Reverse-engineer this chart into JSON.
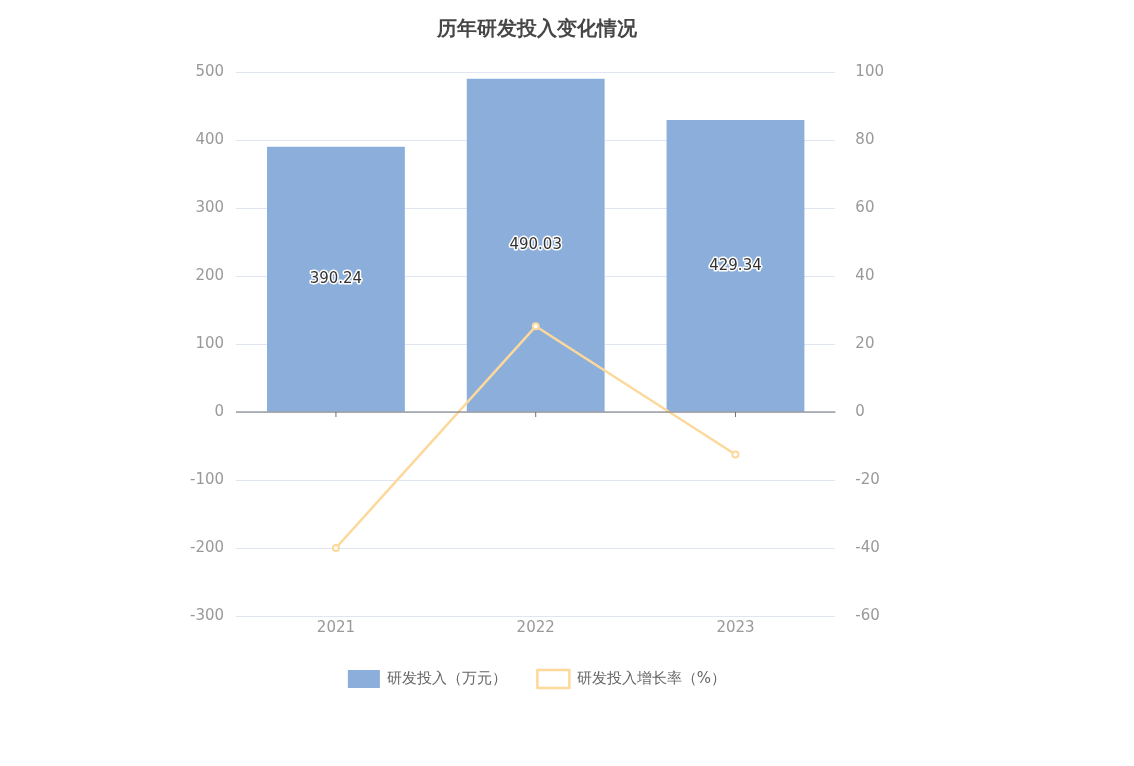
{
  "chart_data": {
    "type": "bar",
    "title": "历年研发投入变化情况",
    "categories": [
      "2021",
      "2022",
      "2023"
    ],
    "series": [
      {
        "name": "研发投入（万元）",
        "color": "#8caedb",
        "values": [
          390.24,
          490.03,
          429.34
        ],
        "value_labels": [
          "390.24",
          "490.03",
          "429.34"
        ]
      },
      {
        "name": "研发投入增长率（%）",
        "type": "line",
        "axis": "y2",
        "color": "#fdd89b",
        "values": [
          -40,
          25.2,
          -12.5
        ],
        "marker": "circle"
      }
    ],
    "ylim": [
      -300,
      500
    ],
    "yticks": [
      -300,
      -200,
      -100,
      0,
      100,
      200,
      300,
      400,
      500
    ],
    "y2lim": [
      -60,
      100
    ],
    "y2ticks": [
      -60,
      -40,
      -20,
      0,
      20,
      40,
      60,
      80,
      100
    ],
    "grid": "y",
    "legend": "bottom"
  }
}
